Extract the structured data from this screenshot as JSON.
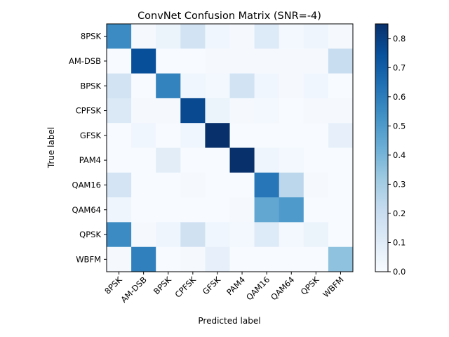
{
  "chart_data": {
    "type": "heatmap",
    "title": "ConvNet Confusion Matrix (SNR=-4)",
    "xlabel": "Predicted label",
    "ylabel": "True label",
    "x_categories": [
      "8PSK",
      "AM-DSB",
      "BPSK",
      "CPFSK",
      "GFSK",
      "PAM4",
      "QAM16",
      "QAM64",
      "QPSK",
      "WBFM"
    ],
    "y_categories": [
      "8PSK",
      "AM-DSB",
      "BPSK",
      "CPFSK",
      "GFSK",
      "PAM4",
      "QAM16",
      "QAM64",
      "QPSK",
      "WBFM"
    ],
    "values": [
      [
        0.55,
        0.01,
        0.05,
        0.16,
        0.03,
        0.01,
        0.11,
        0.02,
        0.04,
        0.01
      ],
      [
        0.0,
        0.75,
        0.0,
        0.0,
        0.01,
        0.01,
        0.01,
        0.01,
        0.01,
        0.2
      ],
      [
        0.16,
        0.0,
        0.58,
        0.03,
        0.02,
        0.16,
        0.03,
        0.01,
        0.03,
        0.0
      ],
      [
        0.12,
        0.01,
        0.01,
        0.77,
        0.05,
        0.01,
        0.02,
        0.0,
        0.01,
        0.01
      ],
      [
        0.0,
        0.03,
        0.0,
        0.03,
        0.85,
        0.0,
        0.0,
        0.0,
        0.0,
        0.07
      ],
      [
        0.0,
        0.0,
        0.09,
        0.0,
        0.0,
        0.85,
        0.04,
        0.02,
        0.0,
        0.0
      ],
      [
        0.15,
        0.0,
        0.0,
        0.01,
        0.0,
        0.0,
        0.62,
        0.24,
        0.01,
        0.0
      ],
      [
        0.04,
        0.0,
        0.0,
        0.0,
        0.0,
        0.01,
        0.45,
        0.5,
        0.0,
        0.0
      ],
      [
        0.55,
        0.01,
        0.04,
        0.17,
        0.03,
        0.02,
        0.11,
        0.02,
        0.05,
        0.0
      ],
      [
        0.01,
        0.59,
        0.0,
        0.01,
        0.07,
        0.0,
        0.0,
        0.0,
        0.0,
        0.35
      ]
    ],
    "colormap": "Blues",
    "colorbar": {
      "range": [
        0,
        0.85
      ],
      "ticks": [
        "0.0",
        "0.1",
        "0.2",
        "0.3",
        "0.4",
        "0.5",
        "0.6",
        "0.7",
        "0.8"
      ]
    },
    "grid": false,
    "legend": "none"
  }
}
